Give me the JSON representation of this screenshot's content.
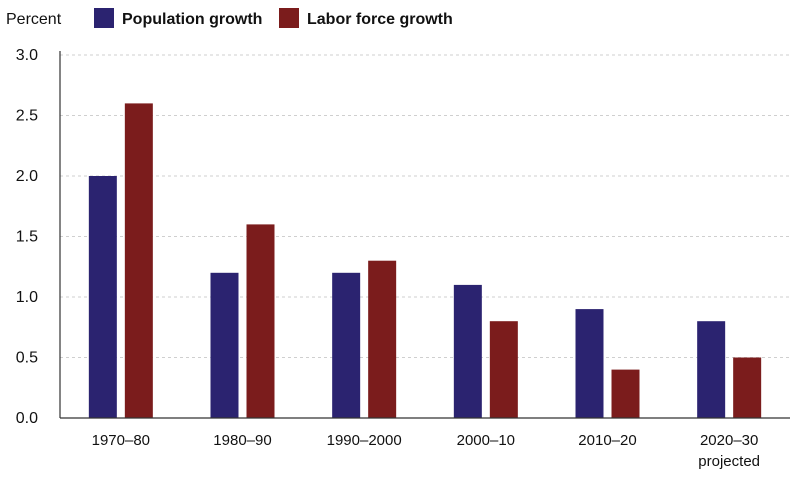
{
  "chart_data": {
    "type": "bar",
    "ylabel": "Percent",
    "categories": [
      "1970–80",
      "1980–90",
      "1990–2000",
      "2000–10",
      "2010–20",
      "2020–30"
    ],
    "category_sublabels": [
      "",
      "",
      "",
      "",
      "",
      "projected"
    ],
    "series": [
      {
        "name": "Population growth",
        "color": "#2b2370",
        "values": [
          2.0,
          1.2,
          1.2,
          1.1,
          0.9,
          0.8
        ]
      },
      {
        "name": "Labor force growth",
        "color": "#7b1c1c",
        "values": [
          2.6,
          1.6,
          1.3,
          0.8,
          0.4,
          0.5
        ]
      }
    ],
    "ylim": [
      0,
      3.0
    ],
    "yticks": [
      "0.0",
      "0.5",
      "1.0",
      "1.5",
      "2.0",
      "2.5",
      "3.0"
    ],
    "grid": true,
    "legend_position": "top"
  }
}
